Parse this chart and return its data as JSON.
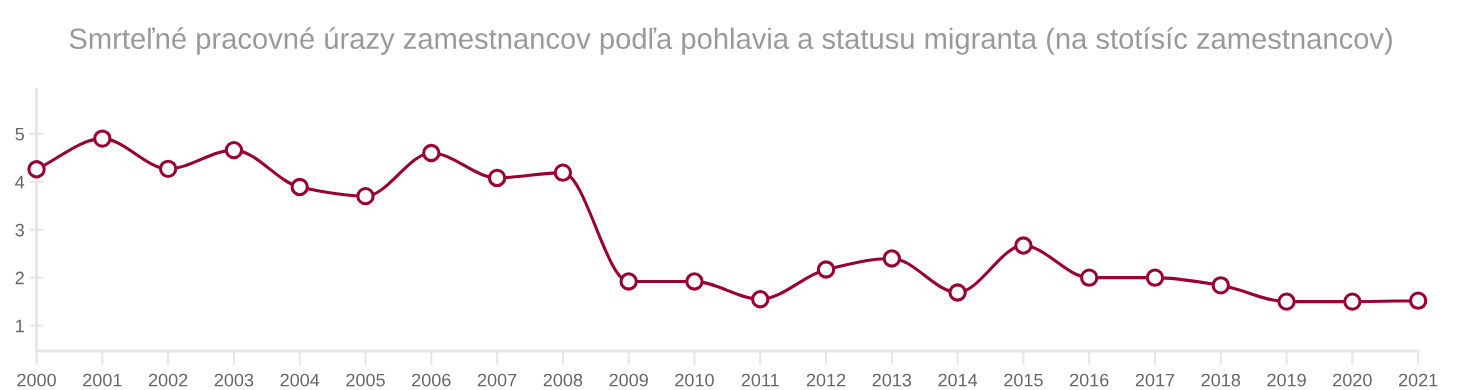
{
  "chart_data": {
    "type": "line",
    "title": "Smrteľné pracovné úrazy zamestnancov podľa pohlavia a statusu migranta (na stotísíc zamestnancov)",
    "categories": [
      "2000",
      "2001",
      "2002",
      "2003",
      "2004",
      "2005",
      "2006",
      "2007",
      "2008",
      "2009",
      "2010",
      "2011",
      "2012",
      "2013",
      "2014",
      "2015",
      "2016",
      "2017",
      "2018",
      "2019",
      "2020",
      "2021"
    ],
    "series": [
      {
        "color": "#990033",
        "values": [
          4.26,
          4.9,
          4.27,
          4.66,
          3.89,
          3.7,
          4.6,
          4.08,
          4.19,
          1.92,
          1.92,
          1.55,
          2.17,
          2.4,
          1.69,
          2.67,
          2.0,
          2.0,
          1.84,
          1.5,
          1.5,
          1.52
        ]
      }
    ],
    "ylim": [
      0.47,
      5.92
    ],
    "yticks": [
      1,
      2,
      3,
      4,
      5
    ],
    "grid": false,
    "legend": false,
    "marker": "circle",
    "line_style": "solid"
  }
}
